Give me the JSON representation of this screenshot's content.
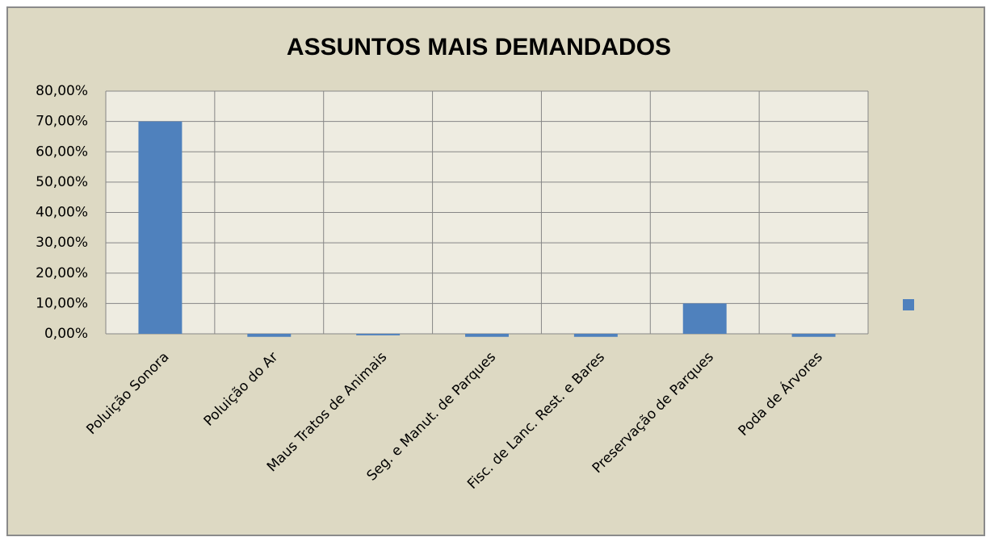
{
  "chart_data": {
    "type": "bar",
    "title": "ASSUNTOS   MAIS DEMANDADOS",
    "categories": [
      "Poluição Sonora",
      "Poluição do Ar",
      "Maus Tratos de Animais",
      "Seg. e Manut. de Parques",
      "Fisc. de Lanc. Rest. e Bares",
      "Preservação de Parques",
      "Poda de Árvores"
    ],
    "values": [
      70,
      -1,
      -0.5,
      -1,
      -1,
      10,
      -1
    ],
    "color": "#4f81bd",
    "ylim": [
      0,
      80
    ],
    "yticks": [
      {
        "value": 0,
        "label": "0,00%"
      },
      {
        "value": 10,
        "label": "10,00%"
      },
      {
        "value": 20,
        "label": "20,00%"
      },
      {
        "value": 30,
        "label": "30,00%"
      },
      {
        "value": 40,
        "label": "40,00%"
      },
      {
        "value": 50,
        "label": "50,00%"
      },
      {
        "value": 60,
        "label": "60,00%"
      },
      {
        "value": 70,
        "label": "70,00%"
      },
      {
        "value": 80,
        "label": "80,00%"
      }
    ],
    "grid": true
  }
}
